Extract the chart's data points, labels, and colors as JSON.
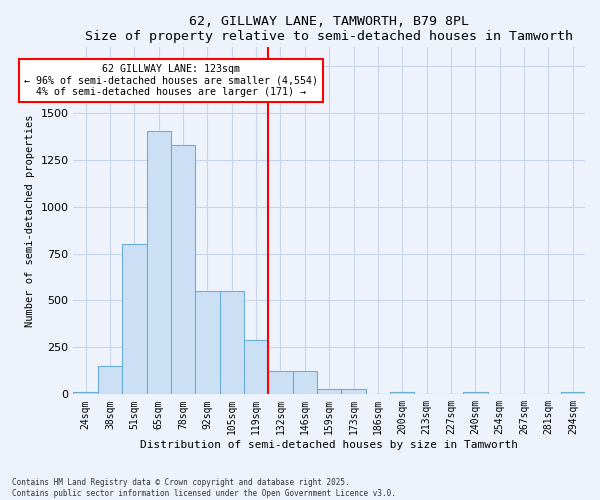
{
  "title": "62, GILLWAY LANE, TAMWORTH, B79 8PL",
  "subtitle": "Size of property relative to semi-detached houses in Tamworth",
  "xlabel": "Distribution of semi-detached houses by size in Tamworth",
  "ylabel": "Number of semi-detached properties",
  "bin_labels": [
    "24sqm",
    "38sqm",
    "51sqm",
    "65sqm",
    "78sqm",
    "92sqm",
    "105sqm",
    "119sqm",
    "132sqm",
    "146sqm",
    "159sqm",
    "173sqm",
    "186sqm",
    "200sqm",
    "213sqm",
    "227sqm",
    "240sqm",
    "254sqm",
    "267sqm",
    "281sqm",
    "294sqm"
  ],
  "bar_heights": [
    15,
    150,
    800,
    1400,
    1330,
    550,
    550,
    290,
    125,
    125,
    30,
    30,
    0,
    10,
    0,
    0,
    10,
    0,
    0,
    0,
    10
  ],
  "bar_color": "#cce0f5",
  "bar_edge_color": "#6aaed6",
  "vline_x": 7.5,
  "vline_color": "red",
  "property_label": "62 GILLWAY LANE: 123sqm",
  "pct_smaller": 96,
  "count_smaller": 4554,
  "pct_larger": 4,
  "count_larger": 171,
  "annotation_box_color": "white",
  "annotation_box_edge": "red",
  "ylim": [
    0,
    1850
  ],
  "background_color": "#eef2fb",
  "grid_color": "#c8d4e8",
  "footnote": "Contains HM Land Registry data © Crown copyright and database right 2025.\nContains public sector information licensed under the Open Government Licence v3.0."
}
